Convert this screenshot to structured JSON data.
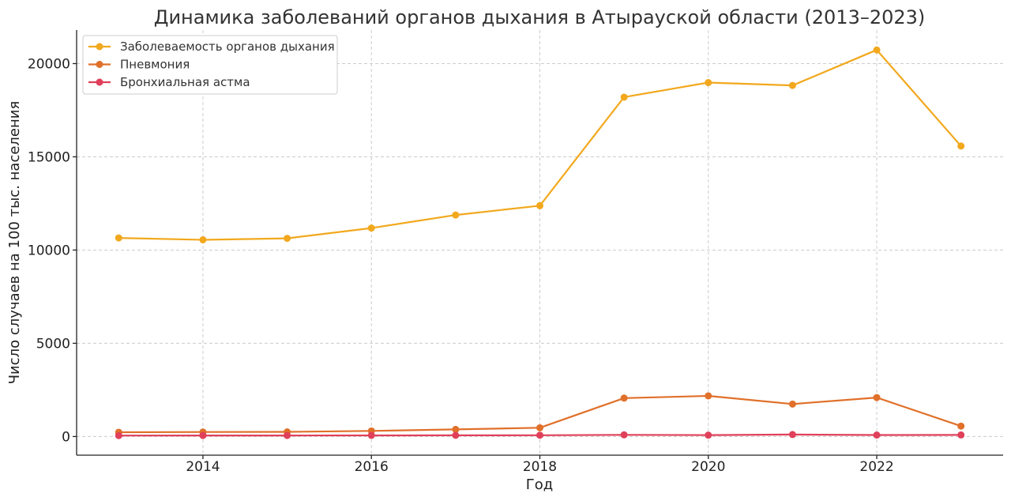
{
  "chart_data": {
    "type": "line",
    "title": "Динамика заболеваний органов дыхания в Атырауской области (2013–2023)",
    "xlabel": "Год",
    "ylabel": "Число случаев на 100 тыс. населения",
    "x": [
      2013,
      2014,
      2015,
      2016,
      2017,
      2018,
      2019,
      2020,
      2021,
      2022,
      2023
    ],
    "xlim": [
      2012.5,
      2023.5
    ],
    "ylim": [
      -1000,
      21800
    ],
    "x_ticks": [
      "2014",
      "2016",
      "2018",
      "2020",
      "2022"
    ],
    "y_ticks": [
      "0",
      "5000",
      "10000",
      "15000",
      "20000"
    ],
    "grid": true,
    "legend_position": "top-left",
    "series": [
      {
        "name": "Заболеваемость органов дыхания",
        "color": "#F2A81D",
        "values": [
          10650,
          10550,
          10630,
          11180,
          11880,
          12380,
          18200,
          18980,
          18830,
          20730,
          15580
        ]
      },
      {
        "name": "Пневмония",
        "color": "#E0702A",
        "values": [
          230,
          240,
          250,
          300,
          380,
          470,
          2060,
          2180,
          1740,
          2090,
          560
        ]
      },
      {
        "name": "Бронхиальная астма",
        "color": "#E0405A",
        "values": [
          50,
          55,
          55,
          60,
          65,
          70,
          90,
          75,
          105,
          80,
          85
        ]
      }
    ]
  }
}
